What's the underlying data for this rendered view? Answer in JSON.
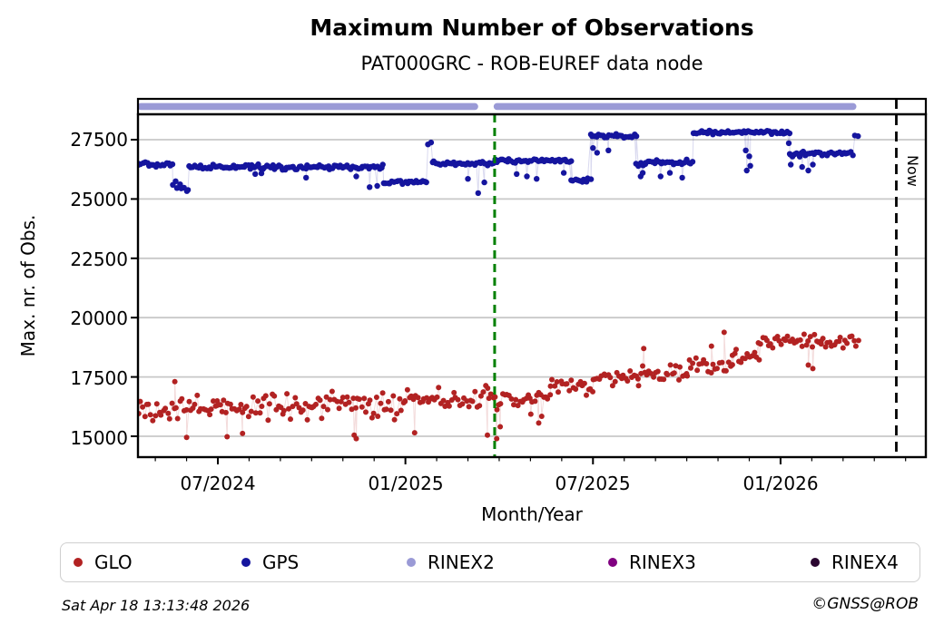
{
  "header": {
    "title": "Maximum Number of Observations",
    "subtitle": "PAT000GRC - ROB-EUREF data node"
  },
  "axes": {
    "xlabel": "Month/Year",
    "ylabel": "Max. nr. of Obs.",
    "now_label": "Now",
    "x_ticks": [
      {
        "label": "07/2024",
        "date": "2024-07-01"
      },
      {
        "label": "01/2025",
        "date": "2025-01-01"
      },
      {
        "label": "07/2025",
        "date": "2025-07-01"
      },
      {
        "label": "01/2026",
        "date": "2026-01-01"
      }
    ],
    "y_ticks": [
      {
        "label": "27500",
        "value": 27500
      },
      {
        "label": "25000",
        "value": 25000
      },
      {
        "label": "22500",
        "value": 22500
      },
      {
        "label": "20000",
        "value": 20000
      },
      {
        "label": "17500",
        "value": 17500
      },
      {
        "label": "15000",
        "value": 15000
      }
    ]
  },
  "legend": {
    "items": [
      {
        "label": "GLO",
        "color": "#b22222"
      },
      {
        "label": "GPS",
        "color": "#15159e"
      },
      {
        "label": "RINEX2",
        "color": "#9a9ad6"
      },
      {
        "label": "RINEX3",
        "color": "#800080"
      },
      {
        "label": "RINEX4",
        "color": "#2a0630"
      }
    ]
  },
  "footer": {
    "timestamp": "Sat Apr 18 13:13:48 2026",
    "credit": "©GNSS@ROB"
  },
  "chart_data": {
    "type": "scatter",
    "title": "Maximum Number of Observations",
    "subtitle": "PAT000GRC - ROB-EUREF data node",
    "xlabel": "Month/Year",
    "ylabel": "Max. nr. of Obs.",
    "x_range": [
      "2024-04-13",
      "2026-05-20"
    ],
    "y_range": [
      14000,
      28600
    ],
    "grid": "horizontal-only",
    "colors": {
      "grid": "#c8c8c8",
      "spine": "#000000",
      "event_line": "#008000",
      "now_line": "#000000"
    },
    "annotations": {
      "event_line_date": "2025-03-27",
      "now_date": "2026-04-18",
      "now_label": "Now"
    },
    "series": [
      {
        "name": "GLO",
        "color": "#b22222",
        "marker": "dot",
        "segments": [
          {
            "start": "2024-04-13",
            "end": "2024-07-01",
            "level": 16150,
            "spread": 650
          },
          {
            "start": "2024-07-01",
            "end": "2024-10-01",
            "level": 16250,
            "spread": 650
          },
          {
            "start": "2024-10-01",
            "end": "2025-01-01",
            "level": 16300,
            "spread": 660
          },
          {
            "start": "2025-01-01",
            "end": "2025-03-26",
            "level": 16550,
            "spread": 620
          },
          {
            "start": "2025-03-27",
            "end": "2025-05-01",
            "level": 16450,
            "spread": 550
          },
          {
            "start": "2025-05-01",
            "end": "2025-05-20",
            "level": 16650,
            "spread": 480
          },
          {
            "start": "2025-05-20",
            "end": "2025-07-01",
            "level": 17100,
            "spread": 450
          },
          {
            "start": "2025-07-01",
            "end": "2025-08-15",
            "level": 17450,
            "spread": 400
          },
          {
            "start": "2025-08-15",
            "end": "2025-10-01",
            "level": 17650,
            "spread": 430
          },
          {
            "start": "2025-10-01",
            "end": "2025-11-15",
            "level": 17950,
            "spread": 480
          },
          {
            "start": "2025-11-15",
            "end": "2025-12-10",
            "level": 18350,
            "spread": 450
          },
          {
            "start": "2025-12-10",
            "end": "2026-02-10",
            "level": 18950,
            "spread": 380
          },
          {
            "start": "2026-02-10",
            "end": "2026-03-16",
            "level": 18950,
            "spread": 350
          }
        ],
        "outliers": [
          [
            "2024-05-20",
            17300
          ],
          [
            "2024-06-01",
            14950
          ],
          [
            "2024-07-10",
            14980
          ],
          [
            "2024-07-25",
            15120
          ],
          [
            "2024-11-12",
            15050
          ],
          [
            "2024-11-14",
            14900
          ],
          [
            "2025-01-10",
            15150
          ],
          [
            "2025-03-20",
            15050
          ],
          [
            "2025-03-29",
            14900
          ],
          [
            "2025-04-02",
            15400
          ],
          [
            "2025-05-09",
            15560
          ],
          [
            "2025-05-12",
            15840
          ],
          [
            "2025-08-20",
            18700
          ],
          [
            "2025-10-25",
            18800
          ],
          [
            "2025-11-07",
            19380
          ],
          [
            "2026-01-28",
            18000
          ],
          [
            "2026-02-02",
            17850
          ]
        ]
      },
      {
        "name": "GPS",
        "color": "#15159e",
        "marker": "dot",
        "segments": [
          {
            "start": "2024-04-13",
            "end": "2024-05-18",
            "level": 26450,
            "spread": 130
          },
          {
            "start": "2024-05-18",
            "end": "2024-06-03",
            "level": 25550,
            "spread": 300
          },
          {
            "start": "2024-06-03",
            "end": "2024-12-10",
            "level": 26350,
            "spread": 130
          },
          {
            "start": "2024-12-10",
            "end": "2025-01-22",
            "level": 25720,
            "spread": 110
          },
          {
            "start": "2025-01-27",
            "end": "2025-03-26",
            "level": 26500,
            "spread": 120
          },
          {
            "start": "2025-03-27",
            "end": "2025-06-10",
            "level": 26620,
            "spread": 120
          },
          {
            "start": "2025-06-10",
            "end": "2025-06-29",
            "level": 25800,
            "spread": 100
          },
          {
            "start": "2025-06-29",
            "end": "2025-08-13",
            "level": 27660,
            "spread": 100
          },
          {
            "start": "2025-08-13",
            "end": "2025-08-22",
            "level": 26480,
            "spread": 150
          },
          {
            "start": "2025-08-22",
            "end": "2025-10-07",
            "level": 26550,
            "spread": 130
          },
          {
            "start": "2025-10-07",
            "end": "2026-01-10",
            "level": 27800,
            "spread": 90
          },
          {
            "start": "2026-01-11",
            "end": "2026-03-10",
            "level": 26900,
            "spread": 130
          },
          {
            "start": "2026-03-13",
            "end": "2026-03-16",
            "level": 27640,
            "spread": 60
          }
        ],
        "outliers": [
          [
            "2024-08-07",
            26050
          ],
          [
            "2024-08-13",
            26080
          ],
          [
            "2024-09-26",
            25900
          ],
          [
            "2024-11-14",
            25950
          ],
          [
            "2024-11-27",
            25500
          ],
          [
            "2024-12-04",
            25550
          ],
          [
            "2025-01-23",
            27300
          ],
          [
            "2025-01-26",
            27380
          ],
          [
            "2025-03-01",
            25850
          ],
          [
            "2025-03-11",
            25250
          ],
          [
            "2025-03-17",
            25700
          ],
          [
            "2025-04-18",
            26050
          ],
          [
            "2025-04-28",
            25950
          ],
          [
            "2025-05-07",
            25850
          ],
          [
            "2025-06-03",
            26100
          ],
          [
            "2025-07-01",
            27150
          ],
          [
            "2025-07-05",
            26950
          ],
          [
            "2025-07-16",
            27050
          ],
          [
            "2025-08-17",
            25950
          ],
          [
            "2025-08-19",
            26100
          ],
          [
            "2025-09-06",
            25950
          ],
          [
            "2025-09-15",
            26100
          ],
          [
            "2025-09-27",
            25900
          ],
          [
            "2025-11-28",
            27050
          ],
          [
            "2025-11-29",
            26200
          ],
          [
            "2025-12-01",
            26800
          ],
          [
            "2025-12-02",
            26400
          ],
          [
            "2026-01-09",
            27350
          ],
          [
            "2026-01-10",
            26900
          ],
          [
            "2026-01-11",
            26450
          ],
          [
            "2026-01-22",
            26350
          ],
          [
            "2026-01-28",
            26200
          ],
          [
            "2026-02-02",
            26450
          ]
        ]
      },
      {
        "name": "RINEX2",
        "color": "#9a9ad6",
        "marker": "band-top-strip",
        "band_segments": [
          {
            "start": "2024-04-14",
            "end": "2025-03-11"
          },
          {
            "start": "2025-03-26",
            "end": "2026-03-14"
          }
        ]
      },
      {
        "name": "RINEX3",
        "color": "#800080",
        "marker": "dot",
        "segments": [],
        "outliers": []
      },
      {
        "name": "RINEX4",
        "color": "#2a0630",
        "marker": "dot",
        "segments": [],
        "outliers": []
      }
    ]
  }
}
